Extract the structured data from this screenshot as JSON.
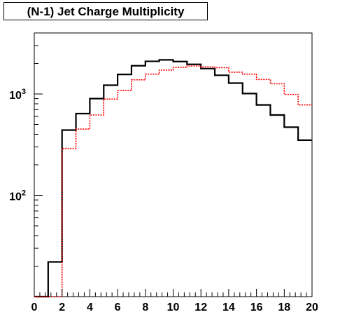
{
  "chart_data": {
    "type": "histogram",
    "title": "(N-1) Jet Charge Multiplicity",
    "xlabel": "",
    "ylabel": "",
    "xlim": [
      0,
      20
    ],
    "ylim": [
      10,
      4000
    ],
    "y_scale": "log",
    "grid": false,
    "legend": "none",
    "x_ticks": [
      "0",
      "2",
      "4",
      "6",
      "8",
      "10",
      "12",
      "14",
      "16",
      "18",
      "20"
    ],
    "y_ticks": [
      {
        "value": 100,
        "base": "10",
        "exponent": "2"
      },
      {
        "value": 1000,
        "base": "10",
        "exponent": "3"
      }
    ],
    "bin_edges": [
      0,
      1,
      2,
      3,
      4,
      5,
      6,
      7,
      8,
      9,
      10,
      11,
      12,
      13,
      14,
      15,
      16,
      17,
      18,
      19,
      20
    ],
    "series": [
      {
        "color": "#000000",
        "line_style": "solid",
        "values": [
          10,
          22,
          440,
          640,
          900,
          1220,
          1560,
          1900,
          2100,
          2170,
          2090,
          1960,
          1780,
          1530,
          1280,
          1010,
          780,
          620,
          470,
          350
        ]
      },
      {
        "color": "#ff0000",
        "line_style": "dotted",
        "values": [
          0,
          0,
          290,
          450,
          620,
          890,
          1080,
          1380,
          1570,
          1720,
          1830,
          1890,
          1850,
          1820,
          1640,
          1570,
          1390,
          1260,
          990,
          780
        ]
      }
    ]
  }
}
